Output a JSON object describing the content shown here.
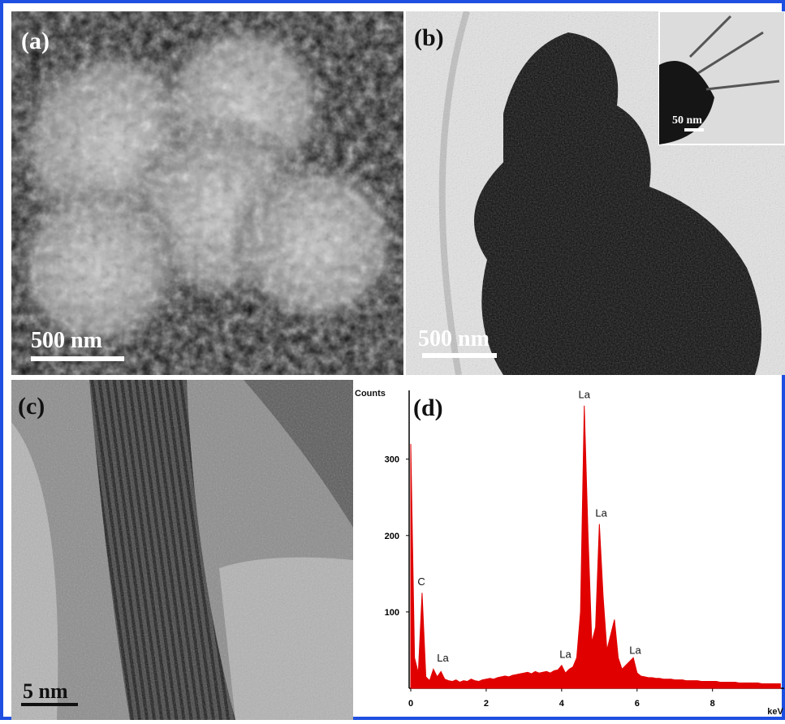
{
  "panels": [
    {
      "label": "(a)",
      "scale_bar": "500 nm"
    },
    {
      "label": "(b)",
      "scale_bar": "500 nm",
      "inset_scale_bar": "50 nm"
    },
    {
      "label": "(c)",
      "scale_bar": "5 nm"
    },
    {
      "label": "(d)"
    }
  ],
  "chart_data": {
    "type": "area",
    "ylabel": "Counts",
    "xlabel": "keV",
    "color": "#e00000",
    "x": [
      0,
      0.1,
      0.2,
      0.3,
      0.4,
      0.5,
      0.6,
      0.7,
      0.8,
      0.9,
      1,
      1.1,
      1.2,
      1.3,
      1.4,
      1.5,
      1.6,
      1.7,
      1.8,
      1.9,
      2,
      2.1,
      2.2,
      2.3,
      2.4,
      2.5,
      2.6,
      2.7,
      2.8,
      2.9,
      3,
      3.1,
      3.2,
      3.3,
      3.4,
      3.5,
      3.6,
      3.7,
      3.8,
      3.9,
      4,
      4.1,
      4.2,
      4.3,
      4.4,
      4.5,
      4.6,
      4.7,
      4.8,
      4.9,
      5,
      5.1,
      5.2,
      5.3,
      5.4,
      5.5,
      5.6,
      5.7,
      5.8,
      5.9,
      6,
      6.1,
      6.2,
      6.3,
      6.4,
      6.5,
      6.6,
      6.7,
      6.8,
      6.9,
      7,
      7.1,
      7.2,
      7.3,
      7.4,
      7.5,
      7.6,
      7.7,
      7.8,
      7.9,
      8,
      8.1,
      8.2,
      8.3,
      8.4,
      8.5,
      8.6,
      8.7,
      8.8,
      8.9,
      9,
      9.1,
      9.2,
      9.3,
      9.4,
      9.5,
      9.6,
      9.7,
      9.8
    ],
    "values": [
      320,
      40,
      20,
      125,
      15,
      10,
      25,
      15,
      22,
      12,
      10,
      9,
      11,
      8,
      10,
      9,
      12,
      10,
      9,
      11,
      12,
      13,
      12,
      14,
      15,
      16,
      15,
      17,
      18,
      19,
      20,
      21,
      19,
      22,
      20,
      21,
      22,
      20,
      23,
      24,
      30,
      20,
      25,
      28,
      40,
      100,
      370,
      200,
      60,
      80,
      215,
      120,
      50,
      70,
      90,
      40,
      25,
      30,
      35,
      40,
      20,
      16,
      15,
      14,
      14,
      13,
      13,
      12,
      12,
      12,
      11,
      11,
      11,
      10,
      10,
      10,
      10,
      9,
      9,
      9,
      9,
      9,
      8,
      8,
      8,
      8,
      8,
      7,
      7,
      7,
      7,
      7,
      7,
      6,
      6,
      6,
      6,
      6,
      6
    ],
    "annotations": [
      {
        "text": "C",
        "x": 0.28,
        "y": 135
      },
      {
        "text": "La",
        "x": 0.85,
        "y": 35
      },
      {
        "text": "La",
        "x": 4.1,
        "y": 40
      },
      {
        "text": "La",
        "x": 4.6,
        "y": 380
      },
      {
        "text": "La",
        "x": 5.05,
        "y": 225
      },
      {
        "text": "La",
        "x": 5.95,
        "y": 45
      }
    ],
    "xlim": [
      0,
      9.9
    ],
    "ylim": [
      0,
      390
    ],
    "xticks": [
      0,
      2,
      4,
      6,
      8
    ],
    "yticks": [
      100,
      200,
      300
    ]
  }
}
